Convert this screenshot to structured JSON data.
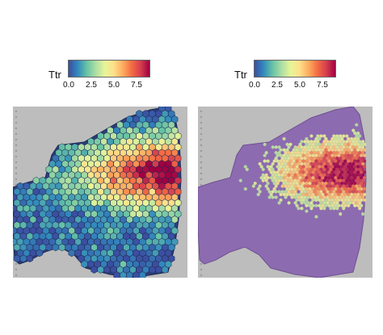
{
  "legend": {
    "title": "Ttr",
    "ticks": [
      "0.0",
      "2.5",
      "5.0",
      "7.5"
    ],
    "range": [
      0,
      9
    ],
    "tick_values": [
      0,
      2.5,
      5,
      7.5
    ]
  },
  "colors": {
    "scale": [
      "#3b4ea0",
      "#3288bd",
      "#66c2a5",
      "#abdda4",
      "#e6f598",
      "#fee08b",
      "#fdae61",
      "#f46d43",
      "#d53e4f",
      "#9e0142"
    ],
    "background": "#bdbdbd",
    "tissue": "#8d6bb0"
  },
  "panels": [
    {
      "id": "expression-spots",
      "mode": "expression"
    },
    {
      "id": "histology-overlay",
      "mode": "histology"
    }
  ]
}
